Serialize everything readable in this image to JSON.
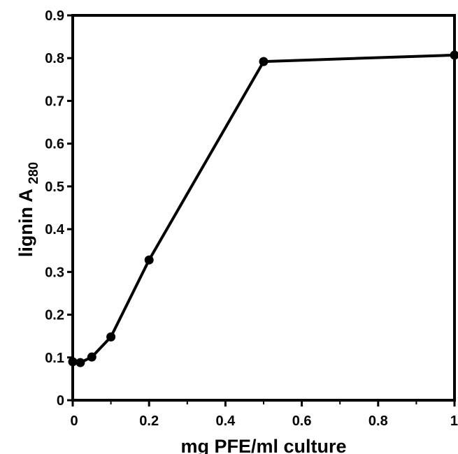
{
  "chart_data": {
    "type": "line",
    "title": "",
    "xlabel": "mg PFE/ml culture",
    "ylabel": {
      "word": "lignin",
      "symbol": "A",
      "subscript": "280"
    },
    "xlim": [
      0,
      1
    ],
    "ylim": [
      0,
      0.9
    ],
    "xticks": [
      {
        "value": 0,
        "label": "0"
      },
      {
        "value": 0.2,
        "label": "0.2"
      },
      {
        "value": 0.4,
        "label": "0.4"
      },
      {
        "value": 0.6,
        "label": "0.6"
      },
      {
        "value": 0.8,
        "label": "0.8"
      },
      {
        "value": 1,
        "label": "1"
      }
    ],
    "yticks": [
      {
        "value": 0,
        "label": "0"
      },
      {
        "value": 0.1,
        "label": "0.1"
      },
      {
        "value": 0.2,
        "label": "0.2"
      },
      {
        "value": 0.3,
        "label": "0.3"
      },
      {
        "value": 0.4,
        "label": "0.4"
      },
      {
        "value": 0.5,
        "label": "0.5"
      },
      {
        "value": 0.6,
        "label": "0.6"
      },
      {
        "value": 0.7,
        "label": "0.7"
      },
      {
        "value": 0.8,
        "label": "0.8"
      },
      {
        "value": 0.9,
        "label": "0.9"
      }
    ],
    "grid": false,
    "legend": "none",
    "line_color": "#000000",
    "marker": "filled-circle",
    "series": [
      {
        "x": [
          0,
          0.02,
          0.05,
          0.1,
          0.2,
          0.5,
          1
        ],
        "y": [
          0.09,
          0.088,
          0.101,
          0.148,
          0.328,
          0.792,
          0.807
        ]
      }
    ]
  }
}
